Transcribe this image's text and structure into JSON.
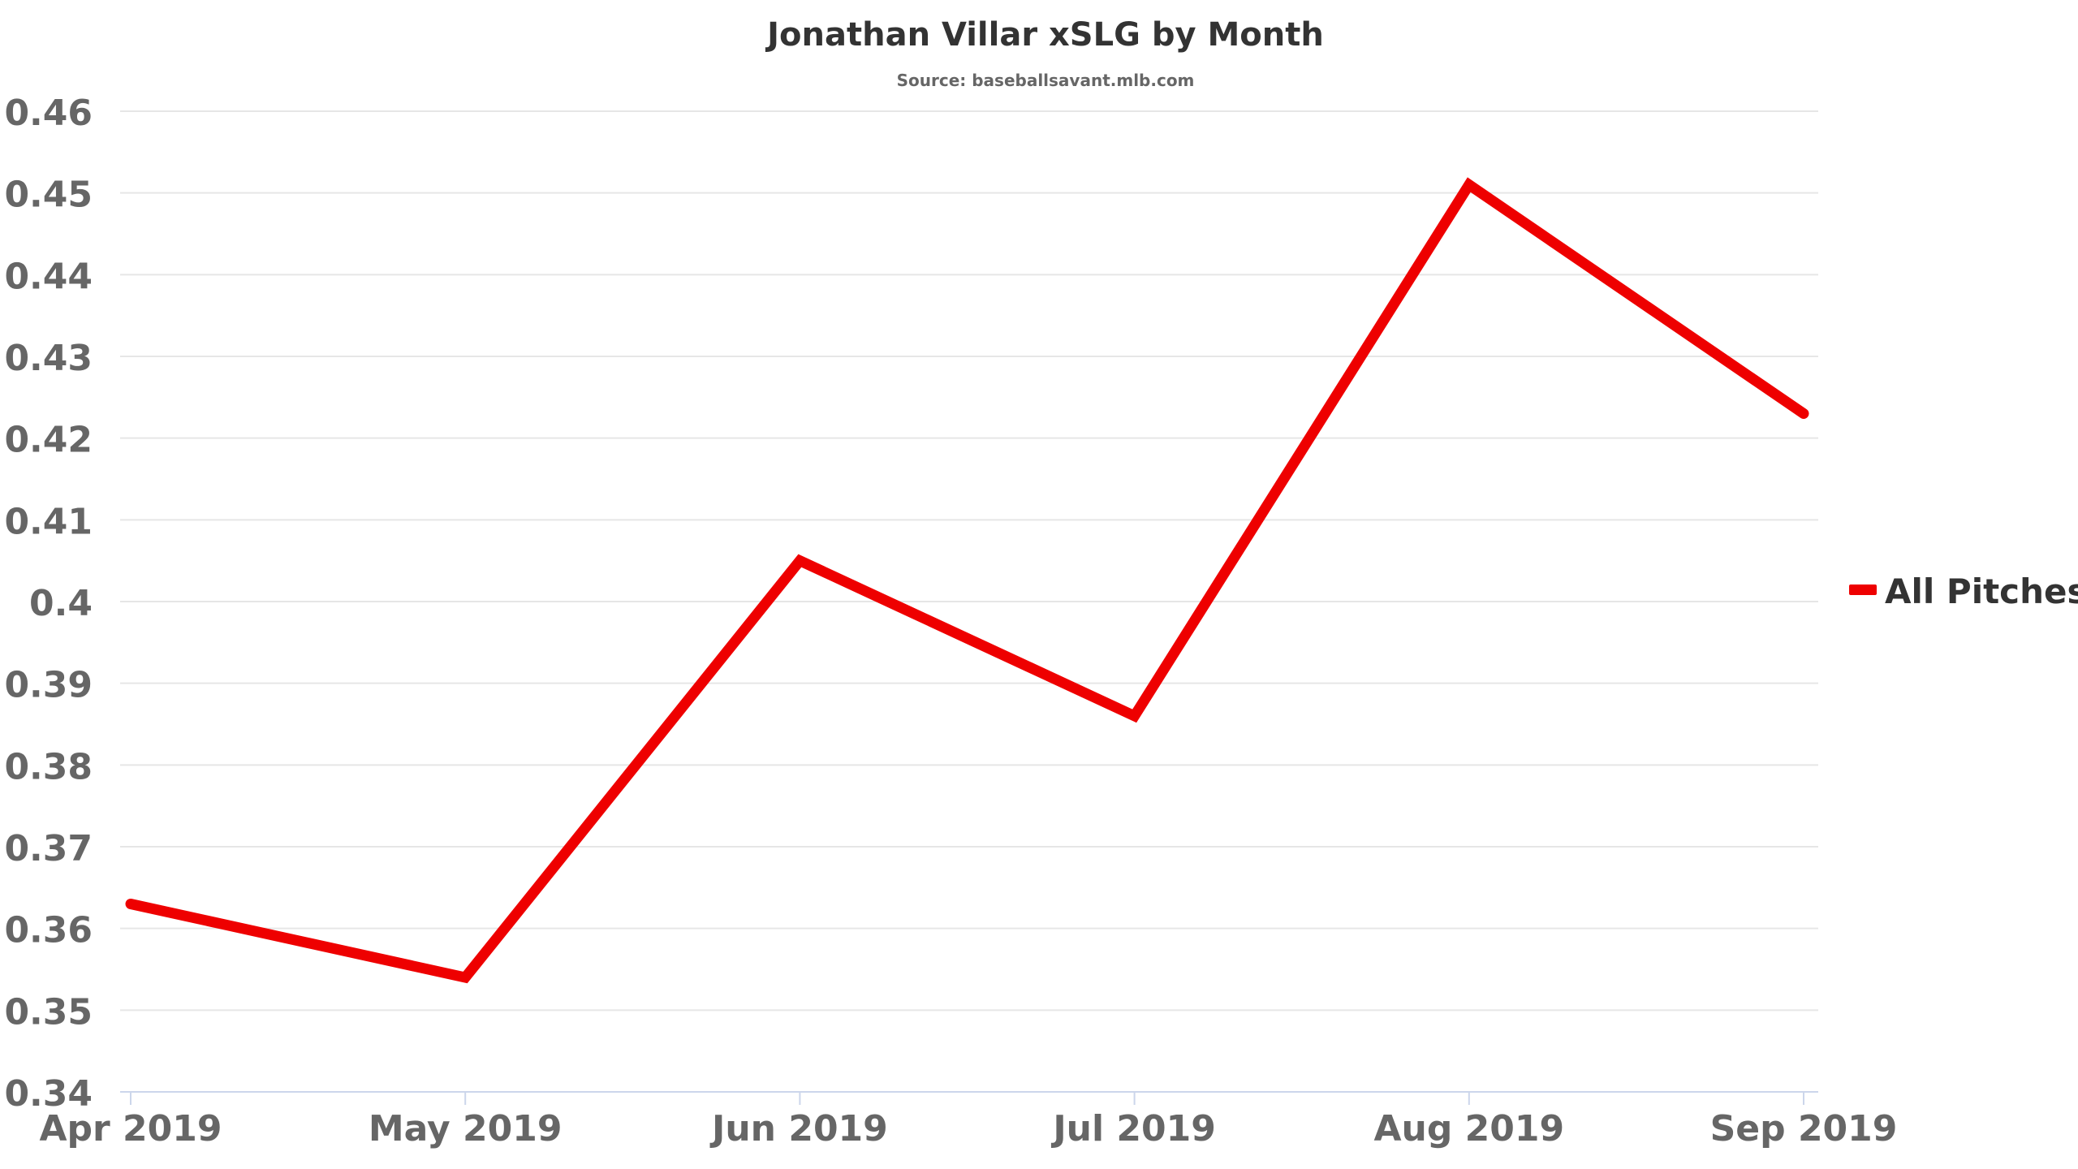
{
  "chart_data": {
    "type": "line",
    "title": "Jonathan Villar xSLG by Month",
    "subtitle": "Source: baseballsavant.mlb.com",
    "categories": [
      "Apr 2019",
      "May 2019",
      "Jun 2019",
      "Jul 2019",
      "Aug 2019",
      "Sep 2019"
    ],
    "series": [
      {
        "name": "All Pitches",
        "color": "#ee0000",
        "values": [
          0.363,
          0.354,
          0.405,
          0.386,
          0.451,
          0.423
        ]
      }
    ],
    "yticks": [
      "0.34",
      "0.35",
      "0.36",
      "0.37",
      "0.38",
      "0.39",
      "0.4",
      "0.41",
      "0.42",
      "0.43",
      "0.44",
      "0.45",
      "0.46"
    ],
    "ylim": [
      0.34,
      0.46
    ],
    "grid": true,
    "legend_position": "right"
  }
}
